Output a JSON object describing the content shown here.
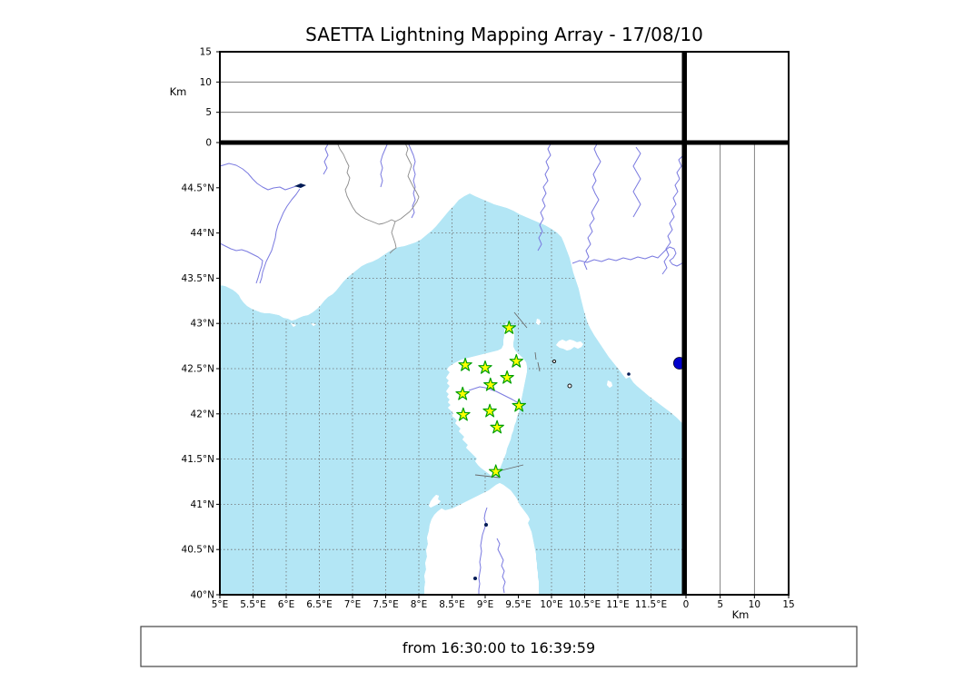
{
  "title": "SAETTA Lightning Mapping Array - 17/08/10",
  "footer": {
    "text": "from 16:30:00 to 16:39:59"
  },
  "colors": {
    "sea": "#b3e6f5",
    "land": "#ffffff",
    "coast": "#111111",
    "grid": "#6e6e6e",
    "river": "#7a7ae0",
    "border_line": "#8a8a8a",
    "station_fill": "#ffff00",
    "station_stroke": "#00a000",
    "event_fill": "#0000cc"
  },
  "top_panel": {
    "axis_label": "Km",
    "tick_values": [
      0,
      5,
      10,
      15
    ],
    "tick_labels": [
      "0",
      "5",
      "10",
      "15"
    ],
    "range": [
      0,
      15
    ],
    "gridline_values": [
      5,
      10
    ]
  },
  "right_panel": {
    "axis_label": "Km",
    "tick_values": [
      0,
      5,
      10,
      15
    ],
    "tick_labels": [
      "0",
      "5",
      "10",
      "15"
    ],
    "range": [
      0,
      15
    ],
    "gridline_values": [
      5,
      10
    ]
  },
  "map_panel": {
    "lon_range": [
      5,
      12
    ],
    "lat_range": [
      40,
      45
    ],
    "lon_ticks": [
      {
        "value": 5,
        "label": "5°E"
      },
      {
        "value": 5.5,
        "label": "5.5°E"
      },
      {
        "value": 6,
        "label": "6°E"
      },
      {
        "value": 6.5,
        "label": "6.5°E"
      },
      {
        "value": 7,
        "label": "7°E"
      },
      {
        "value": 7.5,
        "label": "7.5°E"
      },
      {
        "value": 8,
        "label": "8°E"
      },
      {
        "value": 8.5,
        "label": "8.5°E"
      },
      {
        "value": 9,
        "label": "9°E"
      },
      {
        "value": 9.5,
        "label": "9.5°E"
      },
      {
        "value": 10,
        "label": "10°E"
      },
      {
        "value": 10.5,
        "label": "10.5°E"
      },
      {
        "value": 11,
        "label": "11°E"
      },
      {
        "value": 11.5,
        "label": "11.5°E"
      }
    ],
    "lat_ticks": [
      {
        "value": 40,
        "label": "40°N"
      },
      {
        "value": 40.5,
        "label": "40.5°N"
      },
      {
        "value": 41,
        "label": "41°N"
      },
      {
        "value": 41.5,
        "label": "41.5°N"
      },
      {
        "value": 42,
        "label": "42°N"
      },
      {
        "value": 42.5,
        "label": "42.5°N"
      },
      {
        "value": 43,
        "label": "43°N"
      },
      {
        "value": 43.5,
        "label": "43.5°N"
      },
      {
        "value": 44,
        "label": "44°N"
      },
      {
        "value": 44.5,
        "label": "44.5°N"
      }
    ]
  },
  "chart_data": {
    "type": "scatter",
    "title": "SAETTA Lightning Mapping Array - 17/08/10",
    "time_window": "from 16:30:00 to 16:39:59",
    "map_extent": {
      "lon_min": 5,
      "lon_max": 12,
      "lat_min": 40,
      "lat_max": 45
    },
    "altitude_km": {
      "min": 0,
      "max": 15,
      "ticks": [
        0,
        5,
        10,
        15
      ]
    },
    "grid": "dashed, 0.5 degree spacing",
    "legend": "none",
    "stations": [
      {
        "lon": 9.36,
        "lat": 42.95
      },
      {
        "lon": 8.7,
        "lat": 42.54
      },
      {
        "lon": 9.0,
        "lat": 42.51
      },
      {
        "lon": 9.47,
        "lat": 42.58
      },
      {
        "lon": 9.33,
        "lat": 42.4
      },
      {
        "lon": 9.08,
        "lat": 42.32
      },
      {
        "lon": 8.66,
        "lat": 42.22
      },
      {
        "lon": 9.51,
        "lat": 42.09
      },
      {
        "lon": 9.07,
        "lat": 42.03
      },
      {
        "lon": 8.67,
        "lat": 41.99
      },
      {
        "lon": 9.18,
        "lat": 41.85
      },
      {
        "lon": 9.16,
        "lat": 41.36
      }
    ],
    "events": [
      {
        "lon": 11.93,
        "lat": 42.56,
        "alt_km": 0
      }
    ]
  }
}
